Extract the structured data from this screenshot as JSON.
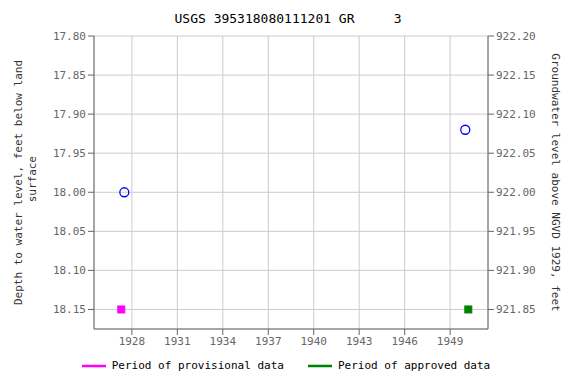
{
  "chart_data": {
    "type": "scatter",
    "title": "USGS 395318080111201 GR     3",
    "ylabel": "Depth to water level, feet below land\n surface",
    "y2label": "Groundwater level above NGVD 1929, feet",
    "xlim": [
      1925.5,
      1951.5
    ],
    "xticks": [
      1928,
      1931,
      1934,
      1937,
      1940,
      1943,
      1946,
      1949
    ],
    "ylim": [
      18.175,
      17.8
    ],
    "yticks": [
      {
        "value": 17.8,
        "label": "17.80"
      },
      17.85,
      {
        "value": 17.9,
        "label": "17.90"
      },
      17.95,
      {
        "value": 18.0,
        "label": "18.00"
      },
      18.05,
      {
        "value": 18.1,
        "label": "18.10"
      },
      18.15
    ],
    "y2lim": [
      921.825,
      922.2
    ],
    "y2ticks": [
      {
        "value": 922.2,
        "label": "922.20"
      },
      922.15,
      {
        "value": 922.1,
        "label": "922.10"
      },
      922.05,
      {
        "value": 922.0,
        "label": "922.00"
      },
      921.95,
      {
        "value": 921.9,
        "label": "921.90"
      },
      921.85
    ],
    "grid": true,
    "legend": "bottom",
    "series": [
      {
        "color": "blue",
        "marker": "circle",
        "x": [
          1927.5,
          1950.0
        ],
        "values": [
          18.0,
          17.92
        ]
      },
      {
        "name": "Period of provisional data",
        "color": "magenta",
        "marker": "square",
        "line_style": "solid",
        "x": [
          1927.3
        ],
        "values": [
          18.15
        ]
      },
      {
        "name": "Period of approved data",
        "color": "green",
        "marker": "square",
        "line_style": "solid",
        "x": [
          1950.2
        ],
        "values": [
          18.15
        ]
      }
    ]
  }
}
